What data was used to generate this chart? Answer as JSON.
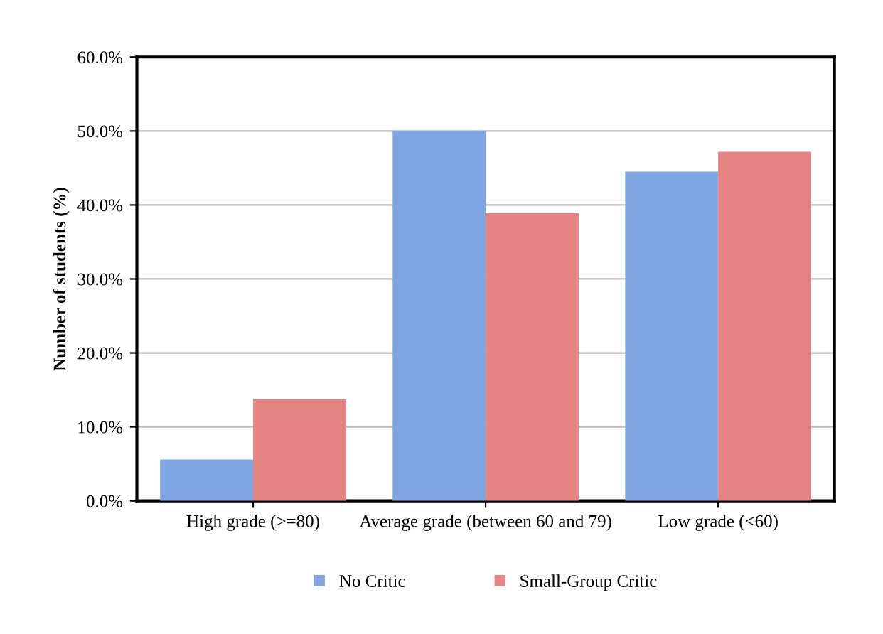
{
  "chart_data": {
    "type": "bar",
    "ylabel": "Number of students (%)",
    "categories": [
      "High grade (>=80)",
      "Average grade (between 60 and 79)",
      "Low grade (<60)"
    ],
    "series": [
      {
        "name": "No Critic",
        "color": "#7fa6e3",
        "values": [
          5.6,
          50.0,
          44.5
        ]
      },
      {
        "name": "Small-Group Critic",
        "color": "#e48583",
        "values": [
          13.7,
          38.9,
          47.2
        ]
      }
    ],
    "ylim": [
      0,
      60
    ],
    "yticks": [
      {
        "value": 0,
        "label": "0.0%"
      },
      {
        "value": 10,
        "label": "10.0%"
      },
      {
        "value": 20,
        "label": "20.0%"
      },
      {
        "value": 30,
        "label": "30.0%"
      },
      {
        "value": 40,
        "label": "40.0%"
      },
      {
        "value": 50,
        "label": "50.0%"
      },
      {
        "value": 60,
        "label": "60.0%"
      }
    ],
    "grid": "y",
    "legend": "bottom"
  }
}
